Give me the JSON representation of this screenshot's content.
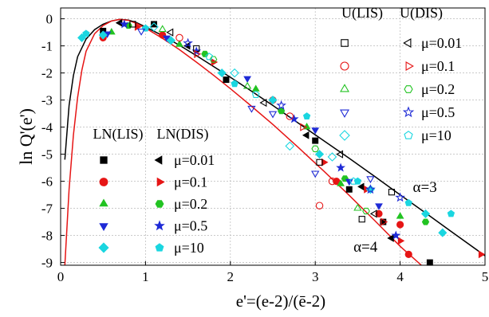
{
  "chart_data": {
    "type": "scatter",
    "title": "",
    "xlabel": "e'=(e-2)/(ē-2)",
    "ylabel": "ln Q'(e')",
    "xlim": [
      0,
      5
    ],
    "ylim": [
      -9.1,
      0.4
    ],
    "x_ticks": [
      0,
      1,
      2,
      3,
      4,
      5
    ],
    "y_ticks": [
      0,
      -1,
      -2,
      -3,
      -4,
      -5,
      -6,
      -7,
      -8,
      -9
    ],
    "grid": true,
    "colors": {
      "mu001": "#000000",
      "mu01": "#e61515",
      "mu02": "#22c322",
      "mu05": "#1e2ad6",
      "mu10": "#1ad6e0"
    },
    "curves": [
      {
        "label": "α=3",
        "color": "#000000",
        "points": [
          [
            0.05,
            -5.2
          ],
          [
            0.1,
            -3.2
          ],
          [
            0.15,
            -2.1
          ],
          [
            0.2,
            -1.4
          ],
          [
            0.3,
            -0.75
          ],
          [
            0.4,
            -0.4
          ],
          [
            0.5,
            -0.2
          ],
          [
            0.6,
            -0.08
          ],
          [
            0.7,
            -0.02
          ],
          [
            0.8,
            -0.05
          ],
          [
            0.9,
            -0.15
          ],
          [
            1.0,
            -0.3
          ],
          [
            1.2,
            -0.62
          ],
          [
            1.4,
            -0.98
          ],
          [
            1.6,
            -1.36
          ],
          [
            1.8,
            -1.76
          ],
          [
            2.0,
            -2.16
          ],
          [
            2.2,
            -2.57
          ],
          [
            2.5,
            -3.2
          ],
          [
            2.8,
            -3.85
          ],
          [
            3.1,
            -4.5
          ],
          [
            3.4,
            -5.15
          ],
          [
            3.7,
            -5.82
          ],
          [
            4.0,
            -6.5
          ],
          [
            4.3,
            -7.17
          ],
          [
            4.6,
            -7.85
          ],
          [
            5.0,
            -8.75
          ]
        ]
      },
      {
        "label": "α=4",
        "color": "#e61515",
        "points": [
          [
            0.05,
            -9.1
          ],
          [
            0.1,
            -6.3
          ],
          [
            0.15,
            -4.3
          ],
          [
            0.2,
            -2.9
          ],
          [
            0.25,
            -1.9
          ],
          [
            0.3,
            -1.2
          ],
          [
            0.4,
            -0.55
          ],
          [
            0.5,
            -0.25
          ],
          [
            0.6,
            -0.08
          ],
          [
            0.7,
            -0.02
          ],
          [
            0.8,
            -0.06
          ],
          [
            0.9,
            -0.18
          ],
          [
            1.0,
            -0.34
          ],
          [
            1.2,
            -0.72
          ],
          [
            1.4,
            -1.14
          ],
          [
            1.6,
            -1.6
          ],
          [
            1.8,
            -2.08
          ],
          [
            2.0,
            -2.58
          ],
          [
            2.2,
            -3.1
          ],
          [
            2.5,
            -3.9
          ],
          [
            2.8,
            -4.75
          ],
          [
            3.1,
            -5.62
          ],
          [
            3.4,
            -6.52
          ],
          [
            3.7,
            -7.45
          ],
          [
            4.0,
            -8.4
          ],
          [
            4.25,
            -9.1
          ]
        ]
      }
    ],
    "curve_labels": [
      {
        "text": "α=3",
        "x": 4.15,
        "y": -6.4
      },
      {
        "text": "α=4",
        "x": 3.45,
        "y": -8.6
      }
    ],
    "series": [
      {
        "name": "LN(LIS) μ=0.01",
        "marker": "square",
        "fill": true,
        "color": "#000000",
        "points": [
          [
            0.5,
            -0.45
          ],
          [
            1.1,
            -0.2
          ],
          [
            1.95,
            -2.25
          ],
          [
            3.0,
            -4.5
          ],
          [
            3.4,
            -6.3
          ],
          [
            3.8,
            -7.5
          ],
          [
            4.35,
            -9.0
          ]
        ]
      },
      {
        "name": "LN(DIS) μ=0.01",
        "marker": "triangle-left",
        "fill": true,
        "color": "#000000",
        "points": [
          [
            0.7,
            -0.15
          ],
          [
            1.5,
            -1.0
          ],
          [
            2.9,
            -4.3
          ],
          [
            3.55,
            -6.2
          ],
          [
            3.9,
            -8.1
          ]
        ]
      },
      {
        "name": "LN(LIS) μ=0.1",
        "marker": "circle",
        "fill": true,
        "color": "#e61515",
        "points": [
          [
            0.5,
            -0.7
          ],
          [
            1.2,
            -0.6
          ],
          [
            2.5,
            -3.0
          ],
          [
            3.25,
            -6.0
          ],
          [
            3.75,
            -7.2
          ],
          [
            4.1,
            -8.7
          ],
          [
            4.0,
            -7.6
          ]
        ]
      },
      {
        "name": "LN(DIS) μ=0.1",
        "marker": "triangle-right",
        "fill": true,
        "color": "#e61515",
        "points": [
          [
            0.9,
            -0.3
          ],
          [
            1.8,
            -1.6
          ],
          [
            3.1,
            -5.3
          ],
          [
            3.6,
            -6.3
          ],
          [
            4.0,
            -8.2
          ],
          [
            4.95,
            -8.7
          ]
        ]
      },
      {
        "name": "LN(LIS) μ=0.2",
        "marker": "triangle-up",
        "fill": true,
        "color": "#22c322",
        "points": [
          [
            0.6,
            -0.5
          ],
          [
            1.4,
            -0.95
          ],
          [
            2.3,
            -2.6
          ],
          [
            2.9,
            -4.0
          ],
          [
            3.3,
            -6.1
          ],
          [
            4.0,
            -7.3
          ]
        ]
      },
      {
        "name": "LN(DIS) μ=0.2",
        "marker": "hexagon",
        "fill": true,
        "color": "#22c322",
        "points": [
          [
            0.8,
            -0.25
          ],
          [
            1.7,
            -1.3
          ],
          [
            2.6,
            -3.4
          ],
          [
            3.35,
            -5.9
          ],
          [
            4.3,
            -7.5
          ]
        ]
      },
      {
        "name": "LN(LIS) μ=0.5",
        "marker": "triangle-down",
        "fill": true,
        "color": "#1e2ad6",
        "points": [
          [
            0.55,
            -0.55
          ],
          [
            1.25,
            -0.7
          ],
          [
            2.2,
            -2.2
          ],
          [
            3.0,
            -4.1
          ],
          [
            3.4,
            -6.0
          ],
          [
            3.75,
            -6.9
          ]
        ]
      },
      {
        "name": "LN(DIS) μ=0.5",
        "marker": "star",
        "fill": true,
        "color": "#1e2ad6",
        "points": [
          [
            0.75,
            -0.2
          ],
          [
            1.6,
            -1.2
          ],
          [
            2.75,
            -3.7
          ],
          [
            3.3,
            -5.5
          ],
          [
            3.95,
            -8.0
          ]
        ]
      },
      {
        "name": "LN(LIS) μ=10",
        "marker": "diamond",
        "fill": true,
        "color": "#1ad6e0",
        "points": [
          [
            0.25,
            -0.7
          ],
          [
            0.5,
            -0.6
          ],
          [
            1.3,
            -0.8
          ],
          [
            1.9,
            -2.0
          ],
          [
            2.5,
            -3.0
          ],
          [
            3.05,
            -5.0
          ],
          [
            3.65,
            -6.3
          ],
          [
            4.3,
            -7.2
          ],
          [
            4.5,
            -7.9
          ]
        ]
      },
      {
        "name": "LN(DIS) μ=10",
        "marker": "pentagon",
        "fill": true,
        "color": "#1ad6e0",
        "points": [
          [
            0.3,
            -0.55
          ],
          [
            1.0,
            -0.35
          ],
          [
            2.05,
            -2.4
          ],
          [
            2.9,
            -3.6
          ],
          [
            3.5,
            -6.0
          ],
          [
            4.6,
            -7.2
          ],
          [
            4.1,
            -6.8
          ]
        ]
      },
      {
        "name": "U(LIS) μ=0.01",
        "marker": "square",
        "fill": false,
        "color": "#000000",
        "points": [
          [
            0.85,
            -0.2
          ],
          [
            1.6,
            -1.1
          ],
          [
            3.05,
            -5.3
          ],
          [
            3.55,
            -7.4
          ],
          [
            3.9,
            -6.4
          ]
        ]
      },
      {
        "name": "U(DIS) μ=0.01",
        "marker": "triangle-left",
        "fill": false,
        "color": "#000000",
        "points": [
          [
            1.3,
            -0.5
          ],
          [
            2.4,
            -3.1
          ],
          [
            3.3,
            -5.0
          ],
          [
            3.7,
            -7.2
          ]
        ]
      },
      {
        "name": "U(LIS) μ=0.1",
        "marker": "circle",
        "fill": false,
        "color": "#e61515",
        "points": [
          [
            1.4,
            -0.7
          ],
          [
            2.7,
            -3.6
          ],
          [
            3.2,
            -6.0
          ],
          [
            3.05,
            -6.9
          ]
        ]
      },
      {
        "name": "U(DIS) μ=0.1",
        "marker": "triangle-right",
        "fill": false,
        "color": "#e61515",
        "points": [
          [
            1.6,
            -1.3
          ],
          [
            2.85,
            -4.0
          ],
          [
            3.8,
            -7.5
          ]
        ]
      },
      {
        "name": "U(LIS) μ=0.2",
        "marker": "triangle-up",
        "fill": false,
        "color": "#22c322",
        "points": [
          [
            1.2,
            -0.4
          ],
          [
            2.2,
            -2.5
          ],
          [
            3.5,
            -7.0
          ]
        ]
      },
      {
        "name": "U(DIS) μ=0.2",
        "marker": "hexagon",
        "fill": false,
        "color": "#22c322",
        "points": [
          [
            1.8,
            -1.5
          ],
          [
            3.0,
            -4.8
          ],
          [
            3.6,
            -7.1
          ]
        ]
      },
      {
        "name": "U(LIS) μ=0.5",
        "marker": "triangle-down",
        "fill": false,
        "color": "#1e2ad6",
        "points": [
          [
            0.95,
            -0.45
          ],
          [
            2.25,
            -3.3
          ],
          [
            2.5,
            -3.5
          ],
          [
            3.0,
            -5.7
          ],
          [
            3.65,
            -5.9
          ]
        ]
      },
      {
        "name": "U(DIS) μ=0.5",
        "marker": "star",
        "fill": false,
        "color": "#1e2ad6",
        "points": [
          [
            1.5,
            -0.9
          ],
          [
            2.6,
            -3.2
          ],
          [
            3.65,
            -6.3
          ],
          [
            4.0,
            -6.6
          ]
        ]
      },
      {
        "name": "U(LIS) μ=10",
        "marker": "diamond",
        "fill": false,
        "color": "#1ad6e0",
        "points": [
          [
            1.1,
            -0.3
          ],
          [
            2.05,
            -2.0
          ],
          [
            2.7,
            -4.7
          ],
          [
            3.2,
            -5.1
          ]
        ]
      },
      {
        "name": "U(DIS) μ=10",
        "marker": "pentagon",
        "fill": false,
        "color": "#1ad6e0",
        "points": [
          [
            1.75,
            -1.4
          ],
          [
            2.3,
            -2.8
          ],
          [
            3.45,
            -6.0
          ]
        ]
      }
    ],
    "legend_ln": {
      "headers": [
        "LN(LIS)",
        "LN(DIS)"
      ],
      "rows": [
        {
          "label": "μ=0.01",
          "color": "#000000",
          "lis": "square",
          "dis": "triangle-left"
        },
        {
          "label": "μ=0.1",
          "color": "#e61515",
          "lis": "circle",
          "dis": "triangle-right"
        },
        {
          "label": "μ=0.2",
          "color": "#22c322",
          "lis": "triangle-up",
          "dis": "hexagon"
        },
        {
          "label": "μ=0.5",
          "color": "#1e2ad6",
          "lis": "triangle-down",
          "dis": "star"
        },
        {
          "label": "μ=10",
          "color": "#1ad6e0",
          "lis": "diamond",
          "dis": "pentagon"
        }
      ]
    },
    "legend_u": {
      "headers": [
        "U(LIS)",
        "U(DIS)"
      ],
      "rows": [
        {
          "label": "μ=0.01",
          "color": "#000000",
          "lis": "square",
          "dis": "triangle-left"
        },
        {
          "label": "μ=0.1",
          "color": "#e61515",
          "lis": "circle",
          "dis": "triangle-right"
        },
        {
          "label": "μ=0.2",
          "color": "#22c322",
          "lis": "triangle-up",
          "dis": "hexagon"
        },
        {
          "label": "μ=0.5",
          "color": "#1e2ad6",
          "lis": "triangle-down",
          "dis": "star"
        },
        {
          "label": "μ=10",
          "color": "#1ad6e0",
          "lis": "diamond",
          "dis": "pentagon"
        }
      ]
    }
  }
}
